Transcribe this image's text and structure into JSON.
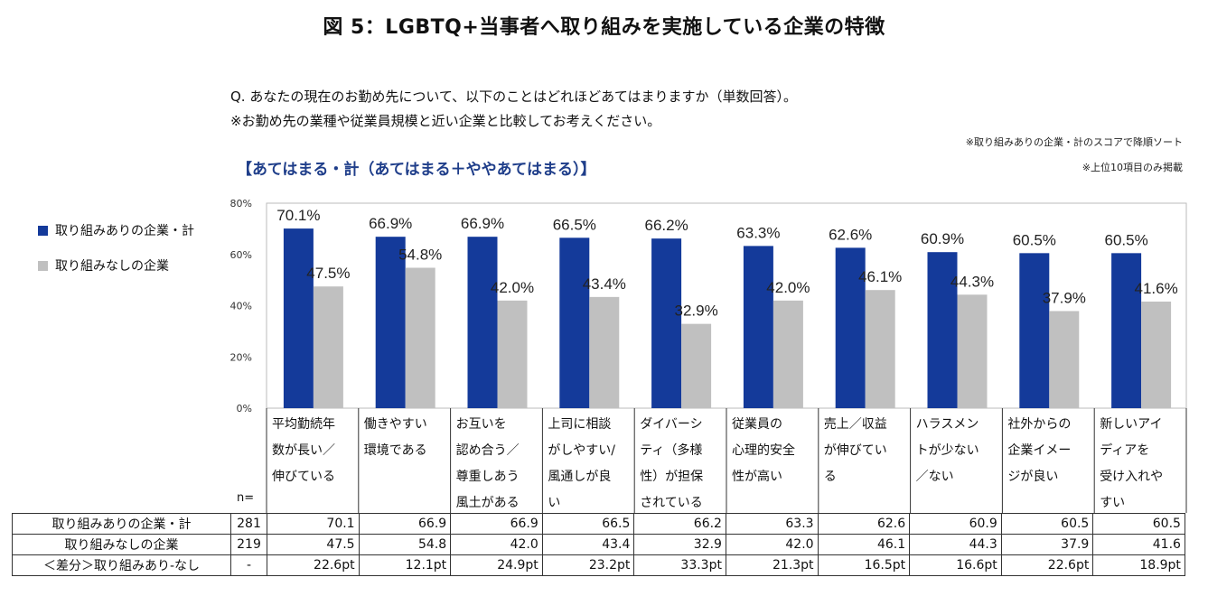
{
  "title": "図 5：LGBTQ+当事者へ取り組みを実施している企業の特徴",
  "question": {
    "line1": "Q. あなたの現在のお勤め先について、以下のことはどれほどあてはまりますか（単数回答）。",
    "line2": "※お勤め先の業種や従業員規模と近い企業と比較してお考えください。"
  },
  "notes": {
    "sort": "※取り組みありの企業・計のスコアで降順ソート",
    "top10": "※上位10項目のみ掲載"
  },
  "subtitle": "【あてはまる・計（あてはまる＋ややあてはまる）】",
  "colors": {
    "with": "#143a9a",
    "without": "#c0c0c0"
  },
  "chart_data": {
    "type": "bar",
    "categories": [
      [
        "平均勤続年",
        "数が長い／",
        "伸びている"
      ],
      [
        "働きやすい",
        "環境である"
      ],
      [
        "お互いを",
        "認め合う／",
        "尊重しあう",
        "風土がある"
      ],
      [
        "上司に相談",
        "がしやすい/",
        "風通しが良",
        "い"
      ],
      [
        "ダイバーシ",
        "ティ（多様",
        "性）が担保",
        "されている"
      ],
      [
        "従業員の",
        "心理的安全",
        "性が高い"
      ],
      [
        "売上／収益",
        "が伸びてい",
        "る"
      ],
      [
        "ハラスメン",
        "トが少ない",
        "／ない"
      ],
      [
        "社外からの",
        "企業イメー",
        "ジが良い"
      ],
      [
        "新しいアイ",
        "ディアを",
        "受け入れや",
        "すい"
      ]
    ],
    "series": [
      {
        "name": "取り組みありの企業・計",
        "values": [
          70.1,
          66.9,
          66.9,
          66.5,
          66.2,
          63.3,
          62.6,
          60.9,
          60.5,
          60.5
        ],
        "labels": [
          "70.1%",
          "66.9%",
          "66.9%",
          "66.5%",
          "66.2%",
          "63.3%",
          "62.6%",
          "60.9%",
          "60.5%",
          "60.5%"
        ]
      },
      {
        "name": "取り組みなしの企業",
        "values": [
          47.5,
          54.8,
          42.0,
          43.4,
          32.9,
          42.0,
          46.1,
          44.3,
          37.9,
          41.6
        ],
        "labels": [
          "47.5%",
          "54.8%",
          "42.0%",
          "43.4%",
          "32.9%",
          "42.0%",
          "46.1%",
          "44.3%",
          "37.9%",
          "41.6%"
        ]
      }
    ],
    "ylim": [
      0,
      80
    ],
    "yticks": [
      "0%",
      "20%",
      "40%",
      "60%",
      "80%"
    ],
    "grid": false,
    "legend": "left"
  },
  "table": {
    "n_label": "n=",
    "rows": [
      {
        "label": "取り組みありの企業・計",
        "n": "281",
        "values": [
          "70.1",
          "66.9",
          "66.9",
          "66.5",
          "66.2",
          "63.3",
          "62.6",
          "60.9",
          "60.5",
          "60.5"
        ]
      },
      {
        "label": "取り組みなしの企業",
        "n": "219",
        "values": [
          "47.5",
          "54.8",
          "42.0",
          "43.4",
          "32.9",
          "42.0",
          "46.1",
          "44.3",
          "37.9",
          "41.6"
        ]
      },
      {
        "label": "＜差分＞取り組みあり-なし",
        "n": "-",
        "values": [
          "22.6pt",
          "12.1pt",
          "24.9pt",
          "23.2pt",
          "33.3pt",
          "21.3pt",
          "16.5pt",
          "16.6pt",
          "22.6pt",
          "18.9pt"
        ]
      }
    ]
  }
}
